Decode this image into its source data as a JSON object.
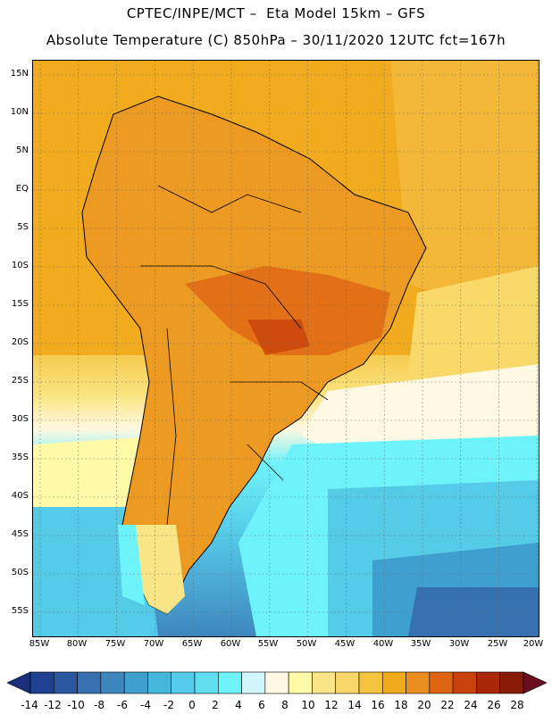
{
  "header": {
    "line1": "CPTEC/INPE/MCT –  Eta Model 15km – GFS",
    "line2": "Absolute Temperature (C) 850hPa – 30/11/2020 12UTC fct=167h"
  },
  "map": {
    "lat_labels": [
      "15N",
      "10N",
      "5N",
      "EQ",
      "5S",
      "10S",
      "15S",
      "20S",
      "25S",
      "30S",
      "35S",
      "40S",
      "45S",
      "50S",
      "55S"
    ],
    "lon_labels": [
      "85W",
      "80W",
      "75W",
      "70W",
      "65W",
      "60W",
      "55W",
      "50W",
      "45W",
      "40W",
      "35W",
      "30W",
      "25W",
      "20W"
    ]
  },
  "colorbar": {
    "labels": [
      "-14",
      "-12",
      "-10",
      "-8",
      "-6",
      "-4",
      "-2",
      "0",
      "2",
      "4",
      "6",
      "8",
      "10",
      "12",
      "14",
      "16",
      "18",
      "20",
      "22",
      "24",
      "26",
      "28"
    ],
    "colors": [
      "#1f3f8f",
      "#2a56a0",
      "#3570b0",
      "#3f86bf",
      "#3f9fcf",
      "#45b7dd",
      "#55cbe8",
      "#5fdff0",
      "#6ff3fa",
      "#d2f6fb",
      "#fff8e2",
      "#fffaa8",
      "#fae686",
      "#f7d66a",
      "#f4c43e",
      "#f1aa1e",
      "#ea8c1f",
      "#de6514",
      "#c9420d",
      "#a82808",
      "#861a08"
    ]
  }
}
